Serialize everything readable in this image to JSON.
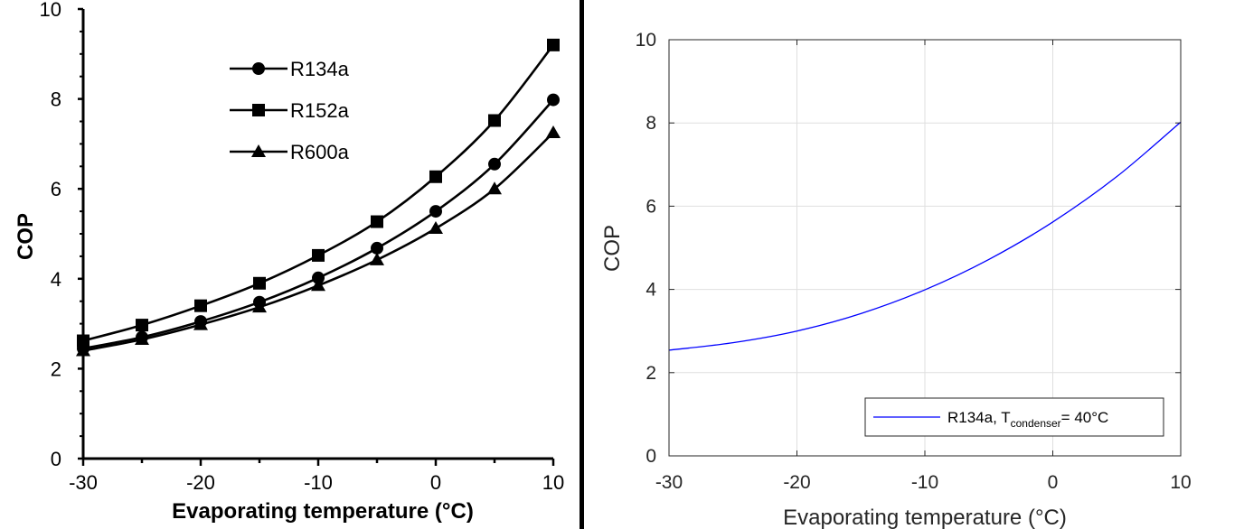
{
  "chart_data": [
    {
      "type": "line",
      "xlabel": "Evaporating temperature (°C)",
      "ylabel": "COP",
      "xlim": [
        -30,
        10
      ],
      "ylim": [
        0,
        10
      ],
      "x": [
        -30,
        -25,
        -20,
        -15,
        -10,
        -5,
        0,
        5,
        10
      ],
      "xticks": [
        "-30",
        "-20",
        "-10",
        "0",
        "10"
      ],
      "yticks": [
        "0",
        "2",
        "4",
        "6",
        "8",
        "10"
      ],
      "grid": false,
      "legend_position": "top-center",
      "series": [
        {
          "name": "R134a",
          "marker": "circle",
          "values": [
            2.45,
            2.7,
            3.05,
            3.48,
            4.02,
            4.68,
            5.5,
            6.55,
            7.98
          ]
        },
        {
          "name": "R152a",
          "marker": "square",
          "values": [
            2.62,
            2.97,
            3.4,
            3.9,
            4.52,
            5.27,
            6.27,
            7.52,
            9.2
          ]
        },
        {
          "name": "R600a",
          "marker": "triangle",
          "values": [
            2.4,
            2.65,
            2.98,
            3.37,
            3.85,
            4.42,
            5.12,
            6.0,
            7.25
          ]
        }
      ]
    },
    {
      "type": "line",
      "xlabel": "Evaporating temperature (°C)",
      "ylabel": "COP",
      "xlim": [
        -30,
        10
      ],
      "ylim": [
        0,
        10
      ],
      "x": [
        -30,
        -25,
        -20,
        -15,
        -10,
        -5,
        0,
        5,
        10
      ],
      "xticks": [
        "-30",
        "-20",
        "-10",
        "0",
        "10"
      ],
      "yticks": [
        "0",
        "2",
        "4",
        "6",
        "8",
        "10"
      ],
      "grid": true,
      "legend_position": "bottom-right",
      "series": [
        {
          "name": "R134a, T",
          "name_sub": "condenser",
          "name_suffix": "= 40°C",
          "color": "#0000ff",
          "values": [
            2.54,
            2.72,
            3.0,
            3.42,
            3.99,
            4.72,
            5.62,
            6.71,
            8.02
          ]
        }
      ]
    }
  ]
}
